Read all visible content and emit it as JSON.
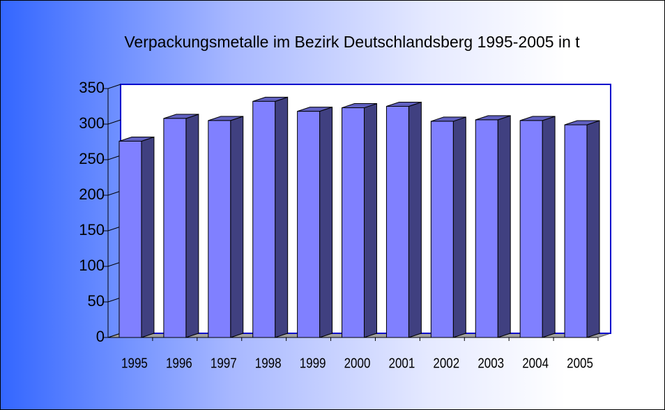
{
  "chart_data": {
    "type": "bar3d",
    "title": "Verpackungsmetalle im Bezirk Deutschlandsberg 1995-2005 in t",
    "categories": [
      "1995",
      "1996",
      "1997",
      "1998",
      "1999",
      "2000",
      "2001",
      "2002",
      "2003",
      "2004",
      "2005"
    ],
    "values": [
      276,
      308,
      305,
      332,
      318,
      323,
      325,
      304,
      306,
      305,
      299
    ],
    "color": "#8080ff",
    "ylim": [
      0,
      350
    ],
    "yticks": [
      0,
      50,
      100,
      150,
      200,
      250,
      300,
      350
    ]
  }
}
